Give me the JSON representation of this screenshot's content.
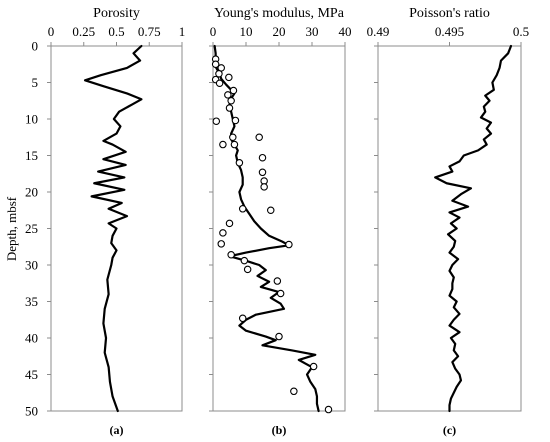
{
  "chart_data": {
    "type": "line",
    "shared_y": {
      "label": "Depth, mbsf",
      "ticks": [
        0,
        5,
        10,
        15,
        20,
        25,
        30,
        35,
        40,
        45,
        50
      ],
      "ylim": [
        0,
        50
      ],
      "inverted": true
    },
    "panels": [
      {
        "id": "a",
        "label": "(a)",
        "title": "Porosity",
        "xlim": [
          0,
          1
        ],
        "xticks": [
          "0",
          "0.25",
          "0.5",
          "0.75",
          "1"
        ],
        "xtick_values": [
          0,
          0.25,
          0.5,
          0.75,
          1
        ],
        "series": [
          {
            "style": "line",
            "depth": [
              0,
              1,
              2,
              3,
              4,
              4.7,
              5.5,
              6.5,
              7.3,
              8,
              9,
              10,
              11,
              12,
              13,
              13.5,
              14.5,
              15.5,
              16.3,
              17.2,
              18,
              18.8,
              19.7,
              20.6,
              21.5,
              22.3,
              23.3,
              24.3,
              25,
              26,
              27,
              28,
              29,
              30,
              32,
              34,
              36,
              38,
              40,
              42,
              44,
              46,
              48,
              50
            ],
            "values": [
              0.69,
              0.63,
              0.68,
              0.58,
              0.38,
              0.26,
              0.4,
              0.58,
              0.69,
              0.62,
              0.52,
              0.48,
              0.53,
              0.5,
              0.4,
              0.47,
              0.57,
              0.4,
              0.57,
              0.36,
              0.56,
              0.33,
              0.56,
              0.31,
              0.54,
              0.44,
              0.58,
              0.44,
              0.5,
              0.47,
              0.46,
              0.5,
              0.47,
              0.46,
              0.43,
              0.44,
              0.41,
              0.4,
              0.42,
              0.41,
              0.44,
              0.45,
              0.47,
              0.51
            ]
          }
        ]
      },
      {
        "id": "b",
        "label": "(b)",
        "title": "Young's modulus, MPa",
        "xlim": [
          0,
          40
        ],
        "xticks": [
          "0",
          "10",
          "20",
          "30",
          "40"
        ],
        "xtick_values": [
          0,
          10,
          20,
          30,
          40
        ],
        "series": [
          {
            "style": "line",
            "depth": [
              0,
              1,
              2,
              3,
              3.8,
              4.5,
              5.3,
              6,
              6.5,
              7.2,
              8,
              9,
              10,
              11,
              12,
              12.8,
              13.5,
              14.3,
              15,
              16,
              17,
              18,
              19,
              20,
              21,
              22,
              23,
              24,
              25,
              26,
              26.8,
              27.3,
              27.7,
              28.3,
              28.8,
              29.5,
              30,
              30.7,
              31.5,
              32.3,
              33,
              33.7,
              34.5,
              35.3,
              36,
              36.8,
              37.5,
              38.3,
              39,
              39.8,
              40.3,
              41,
              41.7,
              42.3,
              43,
              43.5,
              44,
              45,
              46,
              47,
              48,
              49,
              50
            ],
            "values": [
              0.5,
              0.8,
              0.8,
              1.0,
              2.0,
              2.5,
              4.0,
              5.5,
              6.5,
              5.5,
              5.0,
              5.5,
              6.0,
              6.5,
              5.5,
              5.5,
              6.5,
              7.5,
              7.0,
              7.5,
              8.5,
              9.0,
              9.0,
              8.0,
              8.5,
              9.5,
              11.0,
              12.5,
              14.5,
              17.0,
              21.0,
              23.0,
              17.0,
              10.0,
              5.0,
              10.5,
              14.0,
              16.0,
              13.5,
              17.0,
              14.5,
              20.0,
              17.5,
              20.5,
              21.5,
              13.0,
              10.0,
              8.0,
              10.0,
              16.0,
              19.0,
              15.0,
              24.0,
              31.0,
              26.0,
              28.0,
              30.0,
              28.5,
              29.5,
              31.0,
              31.5,
              31.5,
              32.0
            ]
          },
          {
            "style": "markers",
            "depth": [
              1.8,
              2.5,
              3.0,
              3.8,
              4.3,
              4.6,
              5.1,
              6.1,
              6.7,
              7.5,
              8.5,
              10.2,
              10.3,
              12.5,
              12.5,
              13.5,
              13.5,
              15.3,
              16.0,
              17.3,
              18.5,
              19.3,
              22.3,
              22.5,
              24.3,
              25.6,
              27.1,
              27.2,
              28.6,
              29.4,
              30.6,
              32.2,
              33.9,
              37.3,
              39.8,
              43.9,
              47.3,
              49.8
            ],
            "values": [
              0.8,
              0.8,
              2.5,
              1.8,
              4.8,
              0.8,
              2.0,
              6.2,
              4.5,
              5.5,
              5.0,
              6.8,
              1.0,
              6.0,
              14.0,
              6.5,
              3.0,
              15.0,
              8.0,
              15.0,
              15.5,
              15.5,
              9.0,
              17.5,
              5.0,
              3.0,
              2.5,
              23.0,
              5.5,
              9.5,
              10.5,
              19.5,
              20.5,
              9.0,
              20.0,
              30.5,
              24.5,
              35.0
            ]
          }
        ]
      },
      {
        "id": "c",
        "label": "(c)",
        "title": "Poisson's ratio",
        "xlim": [
          0.49,
          0.5
        ],
        "xticks": [
          "0.49",
          "0.495",
          "0.5"
        ],
        "xtick_values": [
          0.49,
          0.495,
          0.5
        ],
        "series": [
          {
            "style": "line",
            "depth": [
              0,
              1,
              2,
              3,
              4,
              5,
              6,
              6.8,
              7.5,
              8.3,
              9,
              9.8,
              10.5,
              11.3,
              12,
              12.8,
              13.5,
              14.3,
              15,
              15.8,
              16.5,
              17.2,
              18,
              18.8,
              19.5,
              20.3,
              21.2,
              22,
              22.8,
              23.5,
              24.3,
              25,
              25.8,
              26.7,
              27.5,
              28.3,
              29.2,
              30,
              30.8,
              31.7,
              32.5,
              33.3,
              34.2,
              35,
              35.8,
              36.7,
              37.5,
              38.3,
              39.2,
              40,
              40.8,
              41.7,
              42.5,
              43.3,
              44.2,
              45,
              45.8,
              46.7,
              47.5,
              48.3,
              49.2,
              50
            ],
            "values": [
              0.4993,
              0.4991,
              0.4986,
              0.4985,
              0.4983,
              0.498,
              0.4981,
              0.4975,
              0.4978,
              0.4974,
              0.4975,
              0.4972,
              0.4979,
              0.4976,
              0.4979,
              0.4974,
              0.4976,
              0.497,
              0.496,
              0.4957,
              0.495,
              0.4952,
              0.494,
              0.4948,
              0.4965,
              0.4958,
              0.4952,
              0.4963,
              0.495,
              0.4957,
              0.4951,
              0.4955,
              0.4949,
              0.4954,
              0.4953,
              0.495,
              0.4956,
              0.4952,
              0.495,
              0.4953,
              0.4952,
              0.4952,
              0.495,
              0.4955,
              0.4953,
              0.4957,
              0.4953,
              0.495,
              0.4957,
              0.4951,
              0.4954,
              0.4953,
              0.4956,
              0.4952,
              0.4954,
              0.4957,
              0.4958,
              0.4955,
              0.4953,
              0.4951,
              0.495,
              0.495
            ]
          }
        ]
      }
    ]
  }
}
